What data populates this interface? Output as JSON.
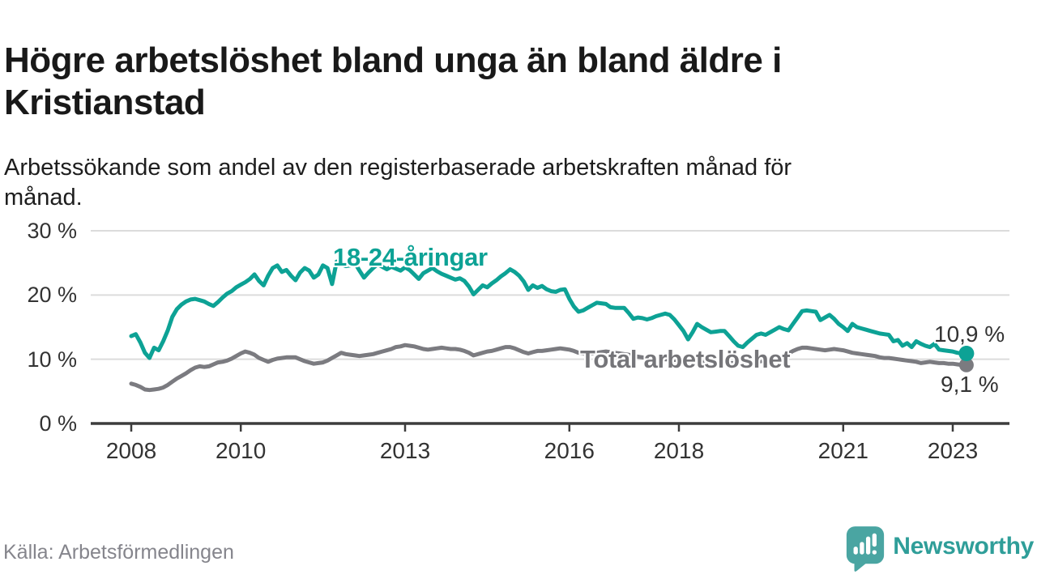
{
  "title": "Högre arbetslöshet bland unga än bland äldre i\nKristianstad",
  "subtitle": "Arbetssökande som andel av den registerbaserade arbetskraften månad för\nmånad.",
  "source": "Källa: Arbetsförmedlingen",
  "branding": {
    "name": "Newsworthy",
    "icon": "bar-chart-speech-bubble-icon",
    "icon_color": "#4aa5a2",
    "text_color": "#2f9e99"
  },
  "colors": {
    "young_series": "#0da295",
    "total_series": "#7b7b80",
    "grid": "#dcdcdc",
    "axis": "#3c3c3c",
    "tick_text": "#333333"
  },
  "chart_data": {
    "type": "line",
    "unit": "%",
    "frequency": "monthly",
    "x_start": "2008-01",
    "x_end": "2023-04",
    "ylim": [
      0,
      30
    ],
    "grid": "horizontal",
    "legend_position": "inline-labels",
    "y_ticks": [
      {
        "value": 30,
        "label": "30 %"
      },
      {
        "value": 20,
        "label": "20 %"
      },
      {
        "value": 10,
        "label": "10 %"
      },
      {
        "value": 0,
        "label": "0 %"
      }
    ],
    "x_ticks": [
      {
        "year": 2008,
        "label": "2008"
      },
      {
        "year": 2010,
        "label": "2010"
      },
      {
        "year": 2013,
        "label": "2013"
      },
      {
        "year": 2016,
        "label": "2016"
      },
      {
        "year": 2018,
        "label": "2018"
      },
      {
        "year": 2021,
        "label": "2021"
      },
      {
        "year": 2023,
        "label": "2023"
      }
    ],
    "series": [
      {
        "name": "18-24-åringar",
        "color": "#0da295",
        "end_value": 10.9,
        "end_label": "10,9 %",
        "values": [
          13.6,
          13.9,
          12.6,
          11.0,
          10.2,
          11.8,
          11.4,
          12.8,
          14.5,
          16.6,
          17.8,
          18.5,
          19.0,
          19.3,
          19.4,
          19.2,
          19.0,
          18.6,
          18.3,
          18.9,
          19.6,
          20.2,
          20.6,
          21.2,
          21.6,
          22.0,
          22.5,
          23.2,
          22.2,
          21.5,
          23.0,
          24.2,
          24.6,
          23.6,
          23.9,
          23.0,
          22.3,
          23.5,
          24.2,
          23.8,
          22.7,
          23.2,
          24.6,
          24.2,
          21.7,
          25.2,
          24.8,
          24.5,
          24.6,
          25.0,
          23.8,
          22.7,
          23.5,
          24.2,
          24.8,
          24.4,
          24.0,
          24.4,
          24.1,
          23.8,
          24.3,
          23.9,
          23.2,
          22.5,
          23.4,
          23.8,
          24.2,
          23.7,
          23.3,
          23.0,
          22.7,
          22.4,
          22.6,
          22.2,
          21.3,
          20.1,
          20.8,
          21.5,
          21.2,
          21.8,
          22.3,
          22.9,
          23.4,
          24.0,
          23.6,
          23.0,
          22.1,
          20.8,
          21.5,
          21.1,
          21.4,
          20.9,
          20.6,
          20.5,
          20.8,
          20.9,
          19.4,
          18.2,
          17.4,
          17.6,
          18.0,
          18.4,
          18.8,
          18.7,
          18.6,
          18.1,
          18.0,
          18.0,
          18.0,
          17.2,
          16.3,
          16.5,
          16.4,
          16.2,
          16.4,
          16.7,
          16.9,
          17.1,
          16.9,
          16.2,
          15.3,
          14.4,
          13.1,
          14.2,
          15.5,
          15.0,
          14.6,
          14.2,
          14.3,
          14.4,
          14.4,
          13.6,
          12.8,
          12.1,
          11.9,
          12.6,
          13.2,
          13.8,
          14.0,
          13.8,
          14.2,
          14.6,
          15.0,
          14.7,
          14.5,
          15.5,
          16.5,
          17.5,
          17.6,
          17.5,
          17.4,
          16.1,
          16.5,
          16.9,
          16.3,
          15.5,
          15.0,
          14.4,
          15.5,
          15.0,
          14.8,
          14.6,
          14.4,
          14.2,
          14.0,
          13.9,
          13.8,
          12.8,
          13.0,
          12.1,
          12.5,
          11.9,
          12.8,
          12.4,
          12.1,
          11.9,
          12.4,
          11.5,
          11.4,
          11.3,
          11.2,
          11.0,
          10.9,
          10.9
        ]
      },
      {
        "name": "Total arbetslöshet",
        "color": "#7b7b80",
        "end_value": 9.1,
        "end_label": "9,1 %",
        "values": [
          6.2,
          6.0,
          5.7,
          5.3,
          5.2,
          5.3,
          5.4,
          5.6,
          6.0,
          6.5,
          7.0,
          7.4,
          7.8,
          8.3,
          8.7,
          8.9,
          8.8,
          8.9,
          9.2,
          9.5,
          9.6,
          9.8,
          10.1,
          10.5,
          10.9,
          11.2,
          11.0,
          10.7,
          10.2,
          9.9,
          9.6,
          9.9,
          10.1,
          10.2,
          10.3,
          10.3,
          10.3,
          10.0,
          9.7,
          9.5,
          9.3,
          9.4,
          9.5,
          9.8,
          10.2,
          10.6,
          11.0,
          10.8,
          10.7,
          10.6,
          10.5,
          10.6,
          10.7,
          10.8,
          11.0,
          11.2,
          11.4,
          11.6,
          11.9,
          12.0,
          12.2,
          12.1,
          12.0,
          11.8,
          11.6,
          11.5,
          11.6,
          11.7,
          11.8,
          11.7,
          11.6,
          11.6,
          11.5,
          11.3,
          11.0,
          10.6,
          10.8,
          11.0,
          11.2,
          11.3,
          11.5,
          11.7,
          11.9,
          11.9,
          11.7,
          11.4,
          11.1,
          10.9,
          11.1,
          11.3,
          11.3,
          11.4,
          11.5,
          11.6,
          11.7,
          11.6,
          11.5,
          11.3,
          11.0,
          10.9,
          10.8,
          10.9,
          11.0,
          11.1,
          11.2,
          11.1,
          11.0,
          10.9,
          10.8,
          10.7,
          10.5,
          10.4,
          10.3,
          10.2,
          10.2,
          10.1,
          10.1,
          10.0,
          10.0,
          9.9,
          9.9,
          9.8,
          9.7,
          9.6,
          9.6,
          9.5,
          9.5,
          9.6,
          9.6,
          9.5,
          9.5,
          9.4,
          9.4,
          9.4,
          9.3,
          9.3,
          9.4,
          9.5,
          9.7,
          9.8,
          10.0,
          10.2,
          10.4,
          10.6,
          10.9,
          11.3,
          11.6,
          11.8,
          11.8,
          11.7,
          11.6,
          11.5,
          11.4,
          11.5,
          11.6,
          11.5,
          11.4,
          11.2,
          11.0,
          10.9,
          10.8,
          10.7,
          10.6,
          10.5,
          10.3,
          10.2,
          10.2,
          10.1,
          10.0,
          9.9,
          9.8,
          9.7,
          9.6,
          9.4,
          9.5,
          9.6,
          9.5,
          9.4,
          9.4,
          9.3,
          9.3,
          9.2,
          9.1,
          9.1
        ]
      }
    ]
  }
}
